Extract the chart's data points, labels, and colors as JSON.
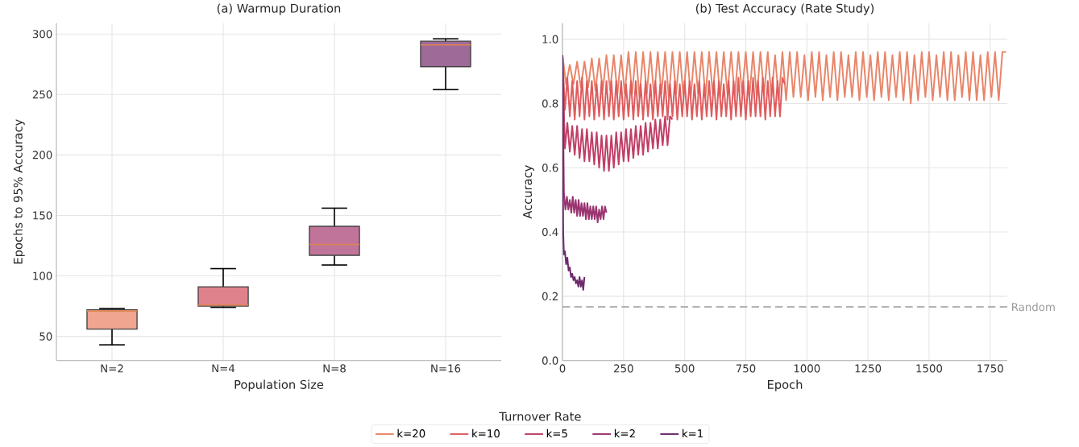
{
  "chart_data": [
    {
      "type": "box",
      "title": "(a) Warmup Duration",
      "xlabel": "Population Size",
      "ylabel": "Epochs to 95% Accuracy",
      "categories": [
        "N=2",
        "N=4",
        "N=8",
        "N=16"
      ],
      "boxes": [
        {
          "low": 43,
          "q1": 56,
          "median": 71,
          "q3": 72,
          "high": 73
        },
        {
          "low": 74,
          "q1": 75,
          "median": 76,
          "q3": 91,
          "high": 106
        },
        {
          "low": 109,
          "q1": 117,
          "median": 126,
          "q3": 141,
          "high": 156
        },
        {
          "low": 254,
          "q1": 273,
          "median": 291,
          "q3": 294,
          "high": 296
        }
      ],
      "colors": [
        "#efa58f",
        "#e0828c",
        "#c17499",
        "#9e6a98"
      ],
      "ylim": [
        30,
        309
      ],
      "yticks": [
        50,
        100,
        150,
        200,
        250,
        300
      ],
      "grid": true
    },
    {
      "type": "line",
      "title": "(b) Test Accuracy (Rate Study)",
      "xlabel": "Epoch",
      "ylabel": "Accuracy",
      "xlim": [
        0,
        1820
      ],
      "ylim": [
        0,
        1.05
      ],
      "xticks": [
        0,
        250,
        500,
        750,
        1000,
        1250,
        1500,
        1750
      ],
      "yticks": [
        {
          "value": 0,
          "label": "0.0"
        },
        0.2,
        0.4,
        0.6,
        0.8,
        {
          "value": 1,
          "label": "1.0"
        }
      ],
      "grid": true,
      "legend": "bottom",
      "legend_title": "Turnover Rate",
      "ref_lines": [
        {
          "axis": "y",
          "value": 0.167,
          "label": "Random",
          "color": "#9a9a9a",
          "line_style": "dashed"
        }
      ],
      "series": [
        {
          "name": "k=20",
          "color": "#e8866a",
          "x": [
            0,
            15,
            30,
            45,
            60,
            75,
            90,
            105,
            120,
            135,
            150,
            165,
            180,
            195,
            210,
            225,
            240,
            255,
            270,
            285,
            300,
            315,
            330,
            345,
            360,
            375,
            390,
            405,
            420,
            435,
            450,
            465,
            480,
            495,
            510,
            525,
            540,
            555,
            570,
            585,
            600,
            615,
            630,
            645,
            660,
            675,
            690,
            705,
            720,
            735,
            750,
            765,
            780,
            795,
            810,
            825,
            840,
            855,
            870,
            885,
            900,
            915,
            930,
            945,
            960,
            975,
            990,
            1005,
            1020,
            1035,
            1050,
            1065,
            1080,
            1095,
            1110,
            1125,
            1140,
            1155,
            1170,
            1185,
            1200,
            1215,
            1230,
            1245,
            1260,
            1275,
            1290,
            1305,
            1320,
            1335,
            1350,
            1365,
            1380,
            1395,
            1410,
            1425,
            1440,
            1455,
            1470,
            1485,
            1500,
            1515,
            1530,
            1545,
            1560,
            1575,
            1590,
            1605,
            1620,
            1635,
            1650,
            1665,
            1680,
            1695,
            1710,
            1725,
            1740,
            1755,
            1770,
            1785,
            1800,
            1815
          ],
          "values": [
            0.95,
            0.86,
            0.92,
            0.86,
            0.93,
            0.85,
            0.93,
            0.85,
            0.94,
            0.84,
            0.94,
            0.84,
            0.95,
            0.84,
            0.95,
            0.83,
            0.95,
            0.83,
            0.96,
            0.83,
            0.96,
            0.82,
            0.96,
            0.83,
            0.96,
            0.82,
            0.96,
            0.83,
            0.96,
            0.82,
            0.96,
            0.83,
            0.96,
            0.82,
            0.96,
            0.82,
            0.96,
            0.83,
            0.96,
            0.82,
            0.96,
            0.83,
            0.96,
            0.82,
            0.96,
            0.83,
            0.96,
            0.82,
            0.96,
            0.83,
            0.96,
            0.82,
            0.96,
            0.82,
            0.96,
            0.83,
            0.96,
            0.82,
            0.95,
            0.81,
            0.96,
            0.81,
            0.96,
            0.82,
            0.96,
            0.82,
            0.95,
            0.81,
            0.96,
            0.82,
            0.96,
            0.81,
            0.95,
            0.82,
            0.96,
            0.81,
            0.96,
            0.82,
            0.95,
            0.82,
            0.96,
            0.81,
            0.96,
            0.82,
            0.95,
            0.81,
            0.96,
            0.82,
            0.96,
            0.81,
            0.95,
            0.82,
            0.96,
            0.81,
            0.96,
            0.8,
            0.95,
            0.81,
            0.96,
            0.82,
            0.96,
            0.81,
            0.95,
            0.82,
            0.96,
            0.81,
            0.96,
            0.81,
            0.95,
            0.82,
            0.96,
            0.81,
            0.96,
            0.81,
            0.95,
            0.81,
            0.96,
            0.82,
            0.96,
            0.81,
            0.96,
            0.96
          ]
        },
        {
          "name": "k=10",
          "color": "#df5c5e",
          "x": [
            0,
            10,
            20,
            30,
            40,
            50,
            60,
            70,
            80,
            90,
            100,
            110,
            120,
            130,
            140,
            150,
            160,
            170,
            180,
            190,
            200,
            210,
            220,
            230,
            240,
            250,
            260,
            270,
            280,
            290,
            300,
            310,
            320,
            330,
            340,
            350,
            360,
            370,
            380,
            390,
            400,
            410,
            420,
            430,
            440,
            450,
            460,
            470,
            480,
            490,
            500,
            510,
            520,
            530,
            540,
            550,
            560,
            570,
            580,
            590,
            600,
            610,
            620,
            630,
            640,
            650,
            660,
            670,
            680,
            690,
            700,
            710,
            720,
            730,
            740,
            750,
            760,
            770,
            780,
            790,
            800,
            810,
            820,
            830,
            840,
            850,
            860,
            870,
            880,
            890,
            900,
            910
          ],
          "values": [
            0.95,
            0.78,
            0.88,
            0.76,
            0.87,
            0.75,
            0.87,
            0.76,
            0.88,
            0.75,
            0.87,
            0.76,
            0.87,
            0.75,
            0.86,
            0.76,
            0.87,
            0.75,
            0.87,
            0.76,
            0.87,
            0.75,
            0.87,
            0.76,
            0.87,
            0.75,
            0.86,
            0.76,
            0.87,
            0.75,
            0.87,
            0.76,
            0.86,
            0.75,
            0.87,
            0.76,
            0.86,
            0.75,
            0.87,
            0.76,
            0.86,
            0.76,
            0.87,
            0.75,
            0.86,
            0.76,
            0.87,
            0.75,
            0.86,
            0.76,
            0.87,
            0.76,
            0.87,
            0.75,
            0.86,
            0.76,
            0.87,
            0.75,
            0.86,
            0.76,
            0.87,
            0.76,
            0.87,
            0.75,
            0.87,
            0.76,
            0.86,
            0.76,
            0.87,
            0.75,
            0.87,
            0.76,
            0.88,
            0.76,
            0.87,
            0.75,
            0.87,
            0.76,
            0.88,
            0.76,
            0.87,
            0.76,
            0.88,
            0.75,
            0.87,
            0.76,
            0.88,
            0.76,
            0.87,
            0.76,
            0.88,
            0.86
          ]
        },
        {
          "name": "k=5",
          "color": "#c03f66",
          "x": [
            0,
            10,
            20,
            30,
            40,
            50,
            60,
            70,
            80,
            90,
            100,
            110,
            120,
            130,
            140,
            150,
            160,
            170,
            180,
            190,
            200,
            210,
            220,
            230,
            240,
            250,
            260,
            270,
            280,
            290,
            300,
            310,
            320,
            330,
            340,
            350,
            360,
            370,
            380,
            390,
            400,
            410,
            420,
            430,
            440,
            450
          ],
          "values": [
            0.95,
            0.66,
            0.74,
            0.65,
            0.73,
            0.64,
            0.73,
            0.63,
            0.72,
            0.62,
            0.72,
            0.62,
            0.71,
            0.61,
            0.71,
            0.6,
            0.7,
            0.59,
            0.7,
            0.59,
            0.7,
            0.6,
            0.71,
            0.61,
            0.71,
            0.62,
            0.72,
            0.62,
            0.72,
            0.63,
            0.73,
            0.64,
            0.73,
            0.64,
            0.74,
            0.65,
            0.74,
            0.66,
            0.75,
            0.66,
            0.75,
            0.67,
            0.76,
            0.67,
            0.76,
            0.75
          ]
        },
        {
          "name": "k=2",
          "color": "#9a3470",
          "x": [
            0,
            6,
            12,
            18,
            24,
            30,
            36,
            42,
            48,
            54,
            60,
            66,
            72,
            78,
            84,
            90,
            96,
            102,
            108,
            114,
            120,
            126,
            132,
            138,
            144,
            150,
            156,
            162,
            168,
            174,
            180
          ],
          "values": [
            0.95,
            0.52,
            0.47,
            0.51,
            0.47,
            0.5,
            0.46,
            0.51,
            0.46,
            0.5,
            0.45,
            0.5,
            0.45,
            0.49,
            0.45,
            0.49,
            0.44,
            0.49,
            0.44,
            0.48,
            0.44,
            0.48,
            0.44,
            0.48,
            0.43,
            0.47,
            0.44,
            0.48,
            0.44,
            0.48,
            0.46
          ]
        },
        {
          "name": "k=1",
          "color": "#6b2a6c",
          "x": [
            0,
            3,
            6,
            10,
            15,
            20,
            25,
            30,
            35,
            40,
            45,
            50,
            55,
            60,
            65,
            70,
            75,
            80,
            85,
            90
          ],
          "values": [
            0.95,
            0.4,
            0.33,
            0.34,
            0.3,
            0.32,
            0.28,
            0.29,
            0.26,
            0.27,
            0.25,
            0.26,
            0.24,
            0.25,
            0.23,
            0.26,
            0.23,
            0.25,
            0.22,
            0.26
          ]
        }
      ]
    }
  ]
}
